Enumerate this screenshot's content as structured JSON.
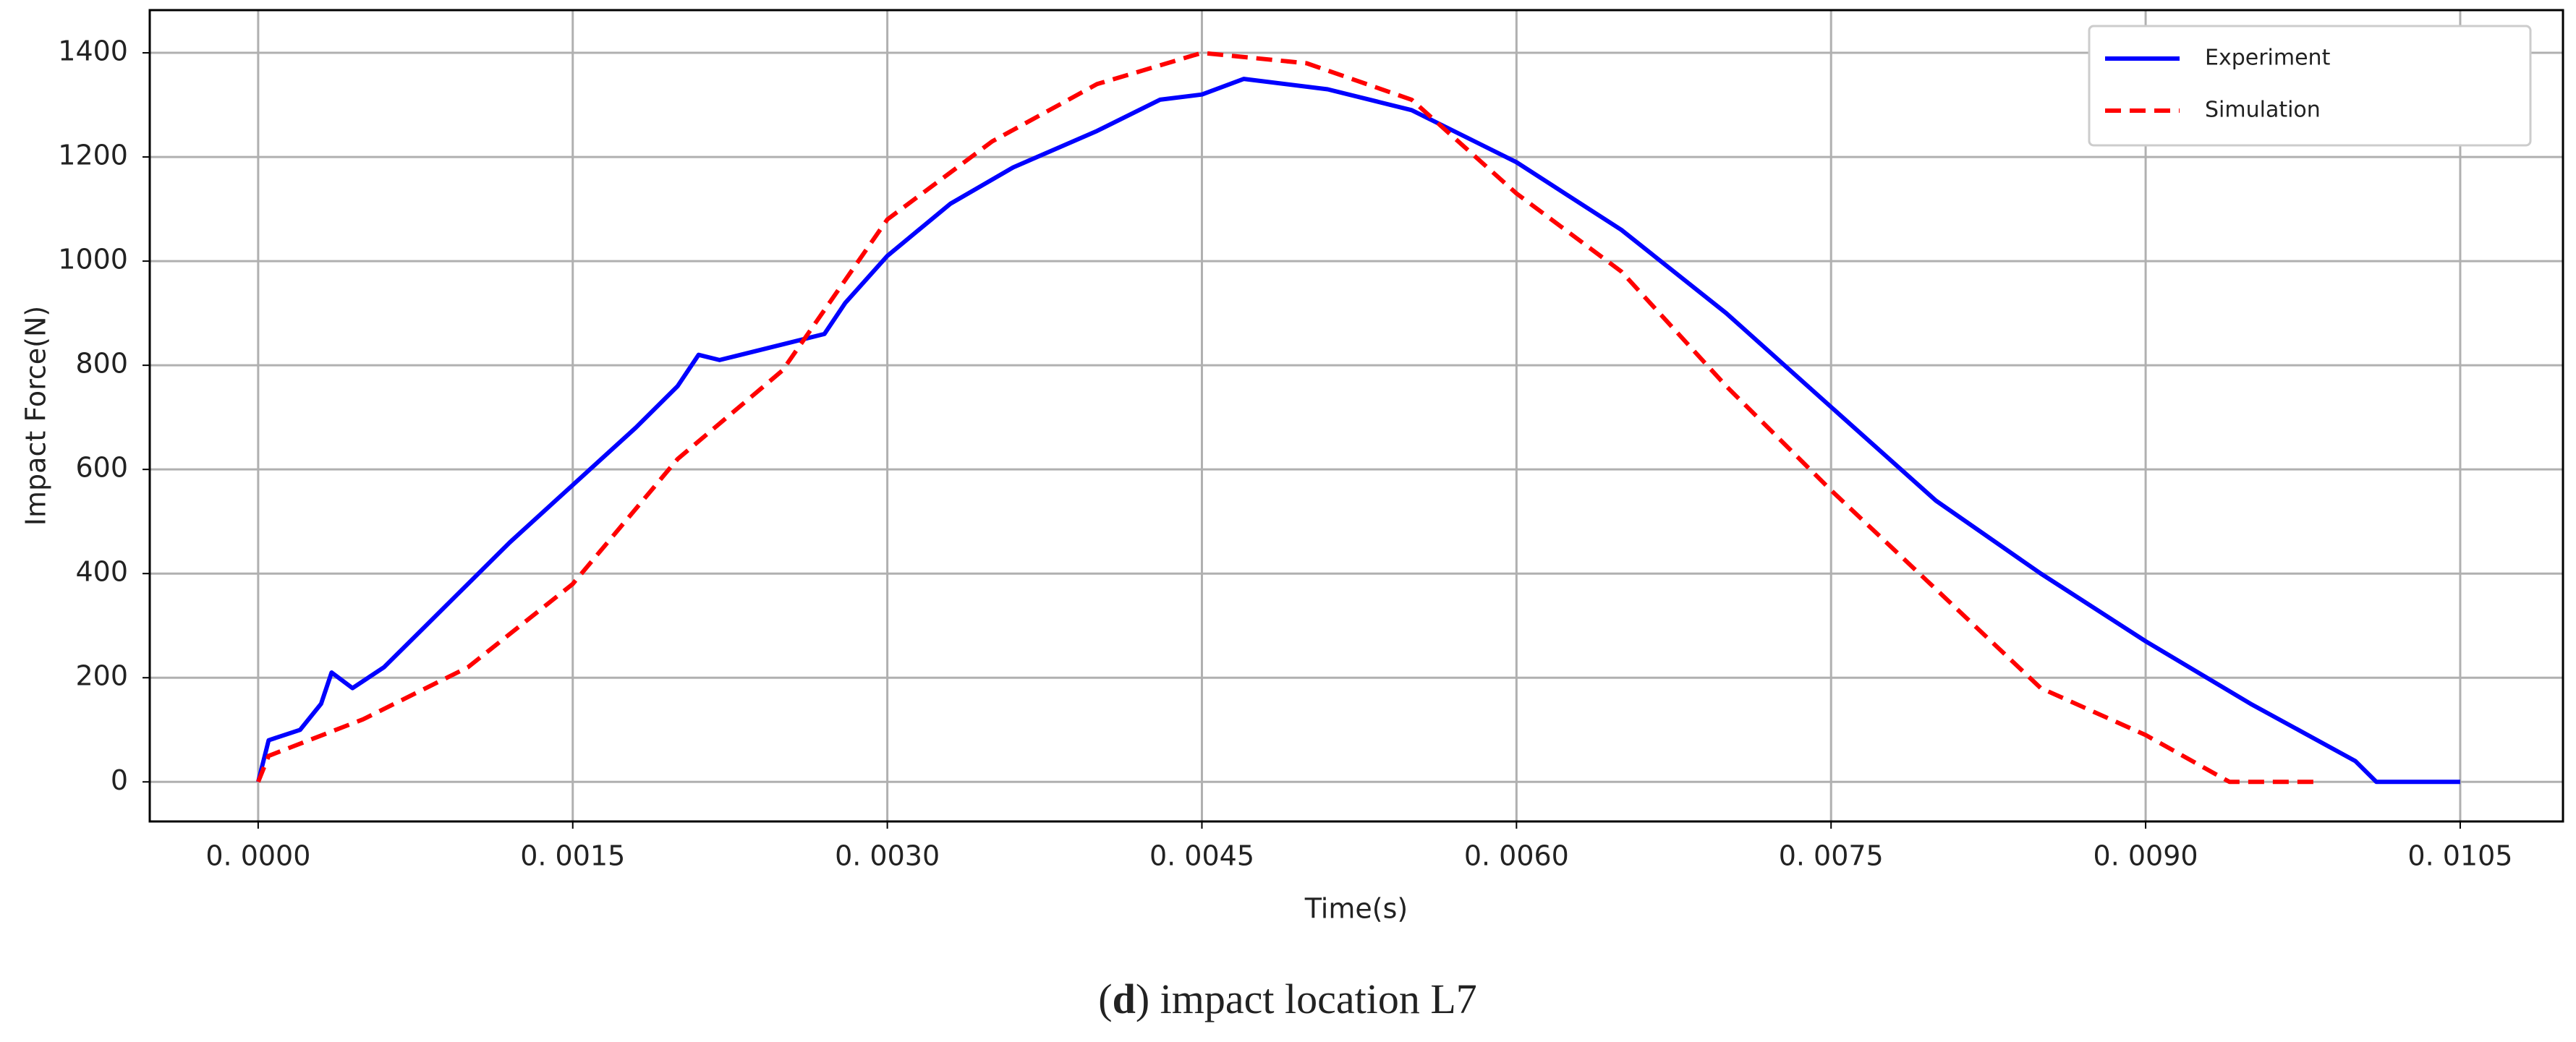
{
  "chart_data": {
    "type": "line",
    "xlabel": "Time(s)",
    "ylabel": "Impact Force(N)",
    "caption": [
      "(",
      "d",
      ") impact location L7"
    ],
    "xlim": [
      -0.000517,
      0.01099
    ],
    "ylim": [
      -76,
      1482
    ],
    "xticks": [
      {
        "value": 0,
        "label": "0. 0000"
      },
      {
        "value": 0.0015,
        "label": "0. 0015"
      },
      {
        "value": 0.003,
        "label": "0. 0030"
      },
      {
        "value": 0.0045,
        "label": "0. 0045"
      },
      {
        "value": 0.006,
        "label": "0. 0060"
      },
      {
        "value": 0.0075,
        "label": "0. 0075"
      },
      {
        "value": 0.009,
        "label": "0. 0090"
      },
      {
        "value": 0.0105,
        "label": "0. 0105"
      }
    ],
    "yticks": [
      0,
      200,
      400,
      600,
      800,
      1000,
      1200,
      1400
    ],
    "grid": true,
    "legend": "upper right",
    "series": [
      {
        "name": "Experiment",
        "color": "#0000ff",
        "dash": false,
        "x": [
          0,
          5e-05,
          0.0002,
          0.0003,
          0.00035,
          0.00045,
          0.0006,
          0.0008,
          0.001,
          0.0012,
          0.0015,
          0.0018,
          0.002,
          0.0021,
          0.0022,
          0.0025,
          0.0027,
          0.0028,
          0.003,
          0.0033,
          0.0036,
          0.004,
          0.0043,
          0.0045,
          0.0047,
          0.0051,
          0.0055,
          0.0058,
          0.006,
          0.0065,
          0.007,
          0.0075,
          0.008,
          0.0085,
          0.009,
          0.0095,
          0.01,
          0.0101,
          0.0105
        ],
        "values": [
          0,
          80,
          100,
          150,
          210,
          180,
          220,
          300,
          380,
          460,
          570,
          680,
          760,
          820,
          810,
          840,
          860,
          920,
          1010,
          1110,
          1180,
          1250,
          1310,
          1320,
          1350,
          1330,
          1290,
          1230,
          1190,
          1060,
          900,
          720,
          540,
          400,
          270,
          150,
          40,
          0,
          0
        ]
      },
      {
        "name": "Simulation",
        "color": "#ff0000",
        "dash": true,
        "x": [
          0,
          5e-05,
          0.0005,
          0.001,
          0.0015,
          0.002,
          0.0025,
          0.003,
          0.0035,
          0.004,
          0.0045,
          0.005,
          0.0055,
          0.006,
          0.0065,
          0.007,
          0.0075,
          0.008,
          0.0085,
          0.009,
          0.0094,
          0.0098
        ],
        "values": [
          0,
          50,
          120,
          220,
          380,
          620,
          790,
          1080,
          1230,
          1340,
          1400,
          1380,
          1310,
          1130,
          980,
          760,
          560,
          370,
          180,
          90,
          0,
          0
        ]
      }
    ]
  }
}
